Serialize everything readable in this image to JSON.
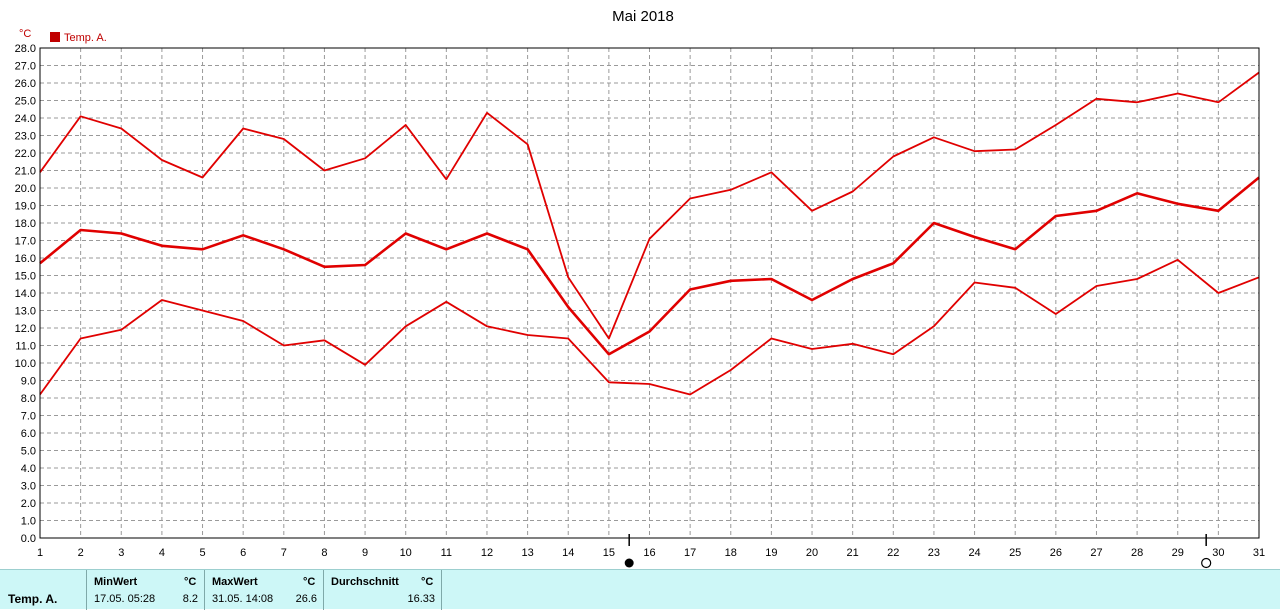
{
  "chart_data": {
    "type": "line",
    "title": "Mai 2018",
    "y_unit": "°C",
    "legend": "Temp. A.",
    "legend_color": "#c00000",
    "line_color": "#e00000",
    "grid": true,
    "x": [
      1,
      2,
      3,
      4,
      5,
      6,
      7,
      8,
      9,
      10,
      11,
      12,
      13,
      14,
      15,
      16,
      17,
      18,
      19,
      20,
      21,
      22,
      23,
      24,
      25,
      26,
      27,
      28,
      29,
      30,
      31
    ],
    "xlim": [
      1,
      31
    ],
    "ylim": [
      0,
      28
    ],
    "ytick_step": 1,
    "series": [
      {
        "key": "max",
        "values": [
          20.9,
          24.1,
          23.4,
          21.6,
          20.6,
          23.4,
          22.8,
          21.0,
          21.7,
          23.6,
          20.5,
          24.3,
          22.5,
          14.9,
          11.4,
          17.1,
          19.4,
          19.9,
          20.9,
          18.7,
          19.8,
          21.8,
          22.9,
          22.1,
          22.2,
          23.6,
          25.1,
          24.9,
          25.4,
          24.9,
          26.6
        ]
      },
      {
        "key": "mean",
        "values": [
          15.7,
          17.6,
          17.4,
          16.7,
          16.5,
          17.3,
          16.5,
          15.5,
          15.6,
          17.4,
          16.5,
          17.4,
          16.5,
          13.2,
          10.5,
          11.8,
          14.2,
          14.7,
          14.8,
          13.6,
          14.8,
          15.7,
          18.0,
          17.2,
          16.5,
          18.4,
          18.7,
          19.7,
          19.1,
          18.7,
          20.6
        ]
      },
      {
        "key": "min",
        "values": [
          8.2,
          11.4,
          11.9,
          13.6,
          13.0,
          12.4,
          11.0,
          11.3,
          9.9,
          12.1,
          13.5,
          12.1,
          11.6,
          11.4,
          8.9,
          8.8,
          8.2,
          9.6,
          11.4,
          10.8,
          11.1,
          10.5,
          12.1,
          14.6,
          14.3,
          12.8,
          14.4,
          14.8,
          15.9,
          14.0,
          14.9
        ]
      }
    ],
    "moon_markers": [
      {
        "x": 15.5,
        "symbol": "new-moon"
      },
      {
        "x": 29.7,
        "symbol": "full-moon"
      }
    ]
  },
  "stats": {
    "row_label": "Temp. A.",
    "min": {
      "header": "MinWert",
      "unit": "°C",
      "time": "17.05.  05:28",
      "value": "8.2"
    },
    "max": {
      "header": "MaxWert",
      "unit": "°C",
      "time": "31.05.  14:08",
      "value": "26.6"
    },
    "avg": {
      "header": "Durchschnitt",
      "unit": "°C",
      "value": "16.33"
    }
  }
}
